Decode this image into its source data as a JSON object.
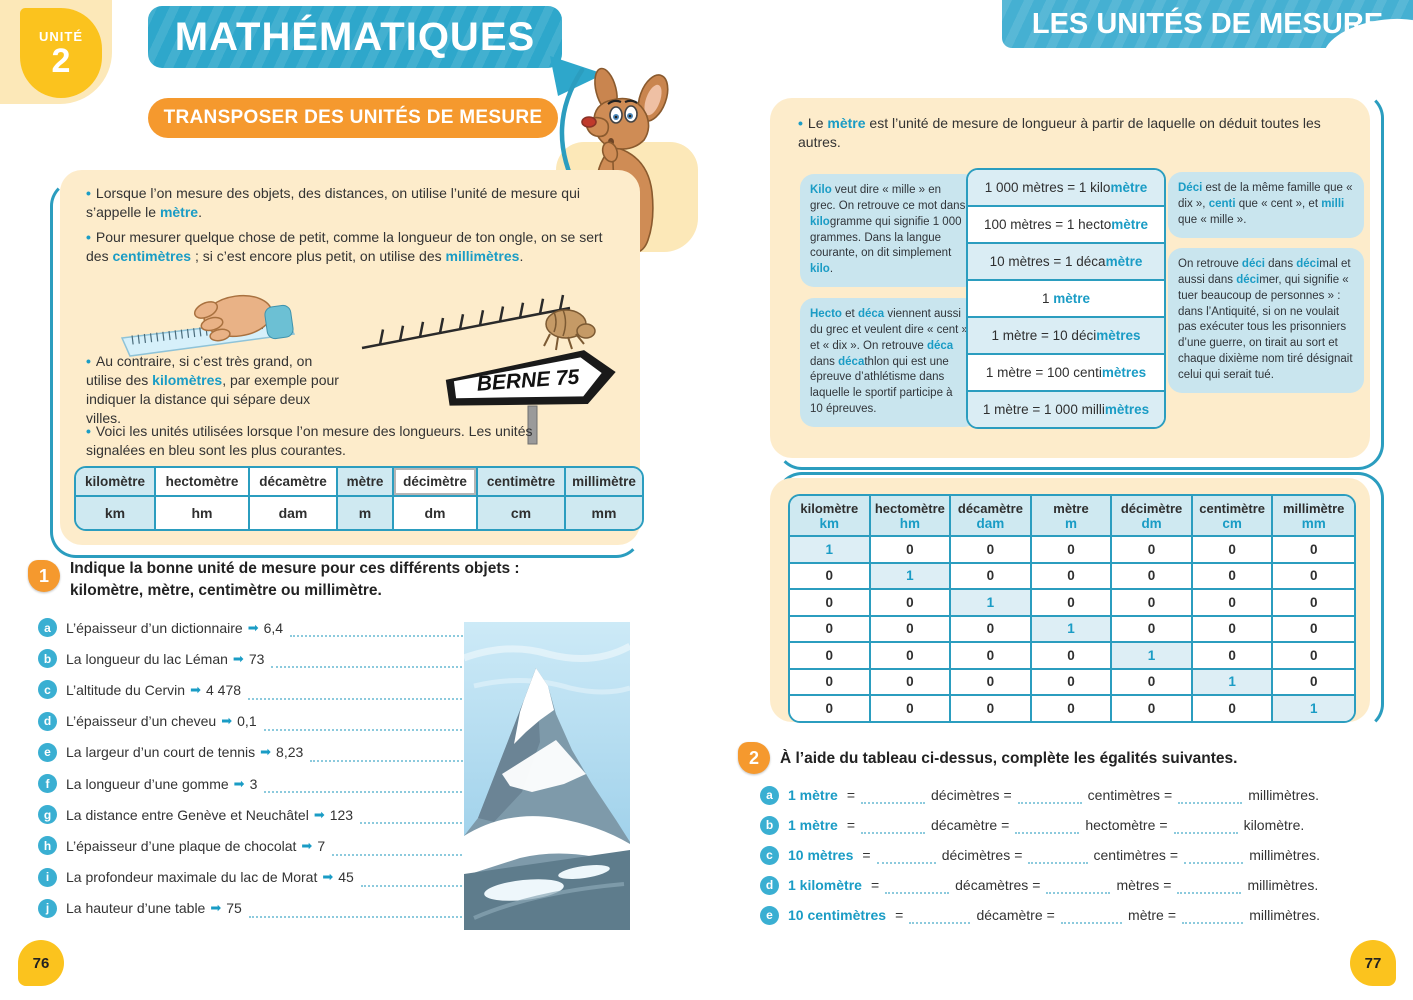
{
  "colors": {
    "banner_teal": "#2ea7cb",
    "accent_teal": "#2b9dbf",
    "link_blue": "#1a9cc5",
    "orange": "#f5992e",
    "cream": "#fdeccb",
    "note_blue": "#c9e5ee",
    "cell_blue": "#cfe9f1",
    "yellow": "#fbc31e"
  },
  "left": {
    "unit_badge": {
      "label": "UNITÉ",
      "number": "2"
    },
    "subject_banner": "MATHÉMATIQUES",
    "lesson_pill": "TRANSPOSER DES UNITÉS DE MESURE",
    "intro": {
      "b1": [
        [
          "Lorsque l’on mesure des objets, des distances, on utilise l’unité de mesure qui s’appelle le ",
          ""
        ],
        [
          "mètre",
          "b"
        ],
        [
          ".",
          ""
        ]
      ],
      "b2": [
        [
          "Pour mesurer quelque chose de petit, comme la longueur de ton ongle, on se sert des ",
          ""
        ],
        [
          "centimètres",
          "b"
        ],
        [
          " ; si c’est encore plus petit, on utilise des ",
          ""
        ],
        [
          "millimètres",
          "b"
        ],
        [
          ".",
          ""
        ]
      ],
      "b3": [
        [
          "Au contraire, si c’est très grand, on utilise des ",
          ""
        ],
        [
          "kilomètres",
          "b"
        ],
        [
          ", par exemple pour indiquer la distance qui sépare deux villes.",
          ""
        ]
      ],
      "b4": [
        [
          "Voici les unités utilisées lorsque l’on mesure des longueurs. Les unités signalées en bleu sont les plus courantes.",
          ""
        ]
      ],
      "sign": "BERNE 75"
    },
    "units_table": {
      "columns": [
        {
          "name": "kilomètre",
          "abbr": "km",
          "blue": true
        },
        {
          "name": "hectomètre",
          "abbr": "hm",
          "blue": false
        },
        {
          "name": "décamètre",
          "abbr": "dam",
          "blue": false
        },
        {
          "name": "mètre",
          "abbr": "m",
          "blue": true
        },
        {
          "name": "décimètre",
          "abbr": "dm",
          "blue": false,
          "boxed": true
        },
        {
          "name": "centimètre",
          "abbr": "cm",
          "blue": true
        },
        {
          "name": "millimètre",
          "abbr": "mm",
          "blue": true
        }
      ]
    },
    "exercise1": {
      "number": "1",
      "title_l1": "Indique la bonne unité de mesure pour ces différents objets :",
      "title_l2": "kilomètre, mètre, centimètre ou millimètre.",
      "items": [
        {
          "letter": "a",
          "text": "L’épaisseur d’un dictionnaire",
          "value": "6,4"
        },
        {
          "letter": "b",
          "text": "La longueur du lac Léman",
          "value": "73"
        },
        {
          "letter": "c",
          "text": "L’altitude du Cervin",
          "value": "4 478"
        },
        {
          "letter": "d",
          "text": "L’épaisseur d’un cheveu",
          "value": "0,1"
        },
        {
          "letter": "e",
          "text": "La largeur d’un court de tennis",
          "value": "8,23"
        },
        {
          "letter": "f",
          "text": "La longueur d’une gomme",
          "value": "3"
        },
        {
          "letter": "g",
          "text": "La distance entre Genève et Neuchâtel",
          "value": "123"
        },
        {
          "letter": "h",
          "text": "L’épaisseur d’une plaque de chocolat",
          "value": "7"
        },
        {
          "letter": "i",
          "text": "La profondeur maximale du lac de Morat",
          "value": "45"
        },
        {
          "letter": "j",
          "text": "La hauteur d’une table",
          "value": "75"
        }
      ]
    },
    "page_number": "76"
  },
  "right": {
    "banner": "LES UNITÉS DE MESURE",
    "intro_bullet": [
      [
        "Le ",
        ""
      ],
      [
        "mètre",
        "b"
      ],
      [
        " est l’unité de mesure de longueur à partir de laquelle on déduit toutes les autres.",
        ""
      ]
    ],
    "note_kilo": [
      [
        "Kilo",
        "b"
      ],
      [
        " veut dire « mille » en grec. On retrouve ce mot dans ",
        ""
      ],
      [
        "kilo",
        "b"
      ],
      [
        "gramme qui signifie 1 000 grammes. Dans la langue courante, on dit simplement ",
        ""
      ],
      [
        "kilo",
        "b"
      ],
      [
        ".",
        ""
      ]
    ],
    "note_hecto": [
      [
        "Hecto",
        "b"
      ],
      [
        " et ",
        ""
      ],
      [
        "déca",
        "b"
      ],
      [
        " viennent aussi du grec et veulent dire « cent » et « dix ». On retrouve ",
        ""
      ],
      [
        "déca",
        "b"
      ],
      [
        " dans ",
        ""
      ],
      [
        "déca",
        "b"
      ],
      [
        "thlon qui est une épreuve d’athlétisme dans laquelle le sportif participe à 10 épreuves.",
        ""
      ]
    ],
    "note_deci": [
      [
        "Déci",
        "b"
      ],
      [
        " est de la même famille que « dix », ",
        ""
      ],
      [
        "centi",
        "b"
      ],
      [
        " que « cent », et ",
        ""
      ],
      [
        "milli",
        "b"
      ],
      [
        " que « mille ».",
        ""
      ]
    ],
    "note_decimer": [
      [
        "On retrouve ",
        ""
      ],
      [
        "déci",
        "b"
      ],
      [
        " dans ",
        ""
      ],
      [
        "déci",
        "b"
      ],
      [
        "mal et aussi dans ",
        ""
      ],
      [
        "déci",
        "b"
      ],
      [
        "mer, qui signifie « tuer beaucoup de personnes » : dans l’Antiquité, si on ne voulait pas exécuter tous les prisonniers d’une guerre, on tirait au sort et chaque dixième nom tiré désignait celui qui serait tué.",
        ""
      ]
    ],
    "equalities": [
      {
        "segs": [
          [
            "1 000 mètres = 1 kilo",
            ""
          ],
          [
            "mètre",
            "b"
          ]
        ],
        "shaded": true
      },
      {
        "segs": [
          [
            "100 mètres = 1 hecto",
            ""
          ],
          [
            "mètre",
            "b"
          ]
        ],
        "shaded": false
      },
      {
        "segs": [
          [
            "10 mètres = 1 déca",
            ""
          ],
          [
            "mètre",
            "b"
          ]
        ],
        "shaded": true
      },
      {
        "segs": [
          [
            "1 ",
            ""
          ],
          [
            "mètre",
            "b"
          ]
        ],
        "shaded": false
      },
      {
        "segs": [
          [
            "1 mètre = 10 déci",
            ""
          ],
          [
            "mètres",
            "b"
          ]
        ],
        "shaded": true
      },
      {
        "segs": [
          [
            "1 mètre = 100 centi",
            ""
          ],
          [
            "mètres",
            "b"
          ]
        ],
        "shaded": false
      },
      {
        "segs": [
          [
            "1 mètre = 1 000 milli",
            ""
          ],
          [
            "mètres",
            "b"
          ]
        ],
        "shaded": true
      }
    ],
    "conversion_table": {
      "headers": [
        {
          "name": "kilomètre",
          "abbr": "km"
        },
        {
          "name": "hectomètre",
          "abbr": "hm"
        },
        {
          "name": "décamètre",
          "abbr": "dam"
        },
        {
          "name": "mètre",
          "abbr": "m"
        },
        {
          "name": "décimètre",
          "abbr": "dm"
        },
        {
          "name": "centimètre",
          "abbr": "cm"
        },
        {
          "name": "millimètre",
          "abbr": "mm"
        }
      ],
      "rows": [
        [
          "1",
          "0",
          "0",
          "0",
          "0",
          "0",
          "0"
        ],
        [
          "0",
          "1",
          "0",
          "0",
          "0",
          "0",
          "0"
        ],
        [
          "0",
          "0",
          "1",
          "0",
          "0",
          "0",
          "0"
        ],
        [
          "0",
          "0",
          "0",
          "1",
          "0",
          "0",
          "0"
        ],
        [
          "0",
          "0",
          "0",
          "0",
          "1",
          "0",
          "0"
        ],
        [
          "0",
          "0",
          "0",
          "0",
          "0",
          "1",
          "0"
        ],
        [
          "0",
          "0",
          "0",
          "0",
          "0",
          "0",
          "1"
        ]
      ]
    },
    "exercise2": {
      "number": "2",
      "title": "À l’aide du tableau ci-dessus, complète les égalités suivantes.",
      "items": [
        {
          "letter": "a",
          "lead": "1 mètre",
          "units": [
            "décimètres",
            "centimètres",
            "millimètres."
          ]
        },
        {
          "letter": "b",
          "lead": "1 mètre",
          "units": [
            "décamètre",
            "hectomètre",
            "kilomètre."
          ]
        },
        {
          "letter": "c",
          "lead": "10 mètres",
          "units": [
            "décimètres",
            "centimètres",
            "millimètres."
          ]
        },
        {
          "letter": "d",
          "lead": "1 kilomètre",
          "units": [
            "décamètres",
            "mètres",
            "millimètres."
          ]
        },
        {
          "letter": "e",
          "lead": "10 centimètres",
          "units": [
            "décamètre",
            "mètre",
            "millimètres."
          ]
        }
      ]
    },
    "page_number": "77"
  }
}
